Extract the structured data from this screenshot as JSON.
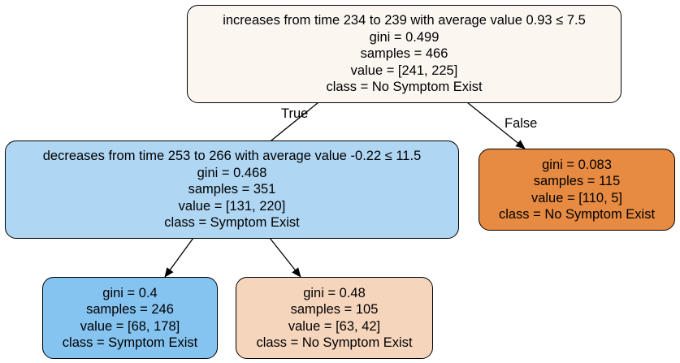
{
  "tree": {
    "root": {
      "condition": "increases from time 234 to 239 with average value 0.93 ≤ 7.5",
      "gini": "gini = 0.499",
      "samples": "samples = 466",
      "value": "value = [241, 225]",
      "class": "class = No Symptom Exist",
      "fill": "#fcf6f1"
    },
    "left": {
      "condition": "decreases from time 253 to 266 with average value -0.22 ≤ 11.5",
      "gini": "gini = 0.468",
      "samples": "samples = 351",
      "value": "value = [131, 220]",
      "class": "class = Symptom Exist",
      "fill": "#afd6f3"
    },
    "right": {
      "gini": "gini = 0.083",
      "samples": "samples = 115",
      "value": "value = [110, 5]",
      "class": "class = No Symptom Exist",
      "fill": "#e78b42"
    },
    "left_left": {
      "gini": "gini = 0.4",
      "samples": "samples = 246",
      "value": "value = [68, 178]",
      "class": "class = Symptom Exist",
      "fill": "#85c3f0"
    },
    "left_right": {
      "gini": "gini = 0.48",
      "samples": "samples = 105",
      "value": "value = [63, 42]",
      "class": "class = No Symptom Exist",
      "fill": "#f6d5bd"
    }
  },
  "edge_labels": {
    "true": "True",
    "false": "False"
  },
  "colors": {
    "border": "#000000",
    "background": "#ffffff"
  }
}
